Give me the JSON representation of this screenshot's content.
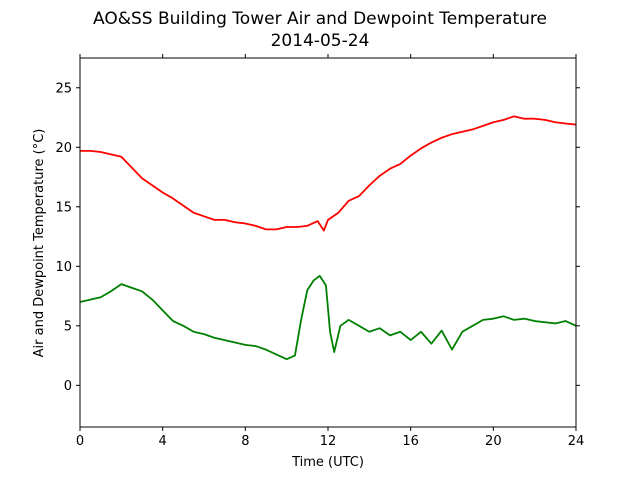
{
  "chart_data": {
    "type": "line",
    "title": "AO&SS Building Tower Air and Dewpoint Temperature",
    "subtitle": "2014-05-24",
    "xlabel": "Time (UTC)",
    "ylabel": "Air and Dewpoint Temperature (°C)",
    "xlim": [
      0,
      24
    ],
    "ylim": [
      -3.5,
      27.5
    ],
    "xticks": [
      0,
      4,
      8,
      12,
      16,
      20,
      24
    ],
    "yticks": [
      0,
      5,
      10,
      15,
      20,
      25
    ],
    "grid": false,
    "legend": "none",
    "series": [
      {
        "color": "#ff0000",
        "x": [
          0,
          0.5,
          1,
          1.5,
          2,
          2.5,
          3,
          3.5,
          4,
          4.5,
          5,
          5.5,
          6,
          6.5,
          7,
          7.5,
          8,
          8.5,
          9,
          9.5,
          10,
          10.5,
          11,
          11.5,
          11.8,
          12,
          12.5,
          13,
          13.5,
          14,
          14.5,
          15,
          15.5,
          16,
          16.5,
          17,
          17.5,
          18,
          18.5,
          19,
          19.5,
          20,
          20.5,
          21,
          21.5,
          22,
          22.5,
          23,
          23.5,
          24
        ],
        "y": [
          19.7,
          19.7,
          19.6,
          19.4,
          19.2,
          18.3,
          17.4,
          16.8,
          16.2,
          15.7,
          15.1,
          14.5,
          14.2,
          13.9,
          13.9,
          13.7,
          13.6,
          13.4,
          13.1,
          13.1,
          13.3,
          13.3,
          13.4,
          13.8,
          13.0,
          13.9,
          14.5,
          15.5,
          15.9,
          16.8,
          17.6,
          18.2,
          18.6,
          19.3,
          19.9,
          20.4,
          20.8,
          21.1,
          21.3,
          21.5,
          21.8,
          22.1,
          22.3,
          22.6,
          22.4,
          22.4,
          22.3,
          22.1,
          22.0,
          21.9
        ]
      },
      {
        "color": "#008000",
        "x": [
          0,
          0.5,
          1,
          1.5,
          2,
          2.5,
          3,
          3.5,
          4,
          4.5,
          5,
          5.5,
          6,
          6.5,
          7,
          7.5,
          8,
          8.5,
          9,
          9.5,
          10,
          10.4,
          10.7,
          11,
          11.3,
          11.6,
          11.9,
          12.1,
          12.3,
          12.6,
          13,
          13.5,
          14,
          14.5,
          15,
          15.5,
          16,
          16.5,
          17,
          17.5,
          18,
          18.5,
          19,
          19.5,
          20,
          20.5,
          21,
          21.5,
          22,
          22.5,
          23,
          23.5,
          24
        ],
        "y": [
          7.0,
          7.2,
          7.4,
          7.9,
          8.5,
          8.2,
          7.9,
          7.2,
          6.3,
          5.4,
          5.0,
          4.5,
          4.3,
          4.0,
          3.8,
          3.6,
          3.4,
          3.3,
          3.0,
          2.6,
          2.2,
          2.5,
          5.5,
          8.0,
          8.8,
          9.2,
          8.4,
          4.5,
          2.8,
          5.0,
          5.5,
          5.0,
          4.5,
          4.8,
          4.2,
          4.5,
          3.8,
          4.5,
          3.5,
          4.6,
          3.0,
          4.5,
          5.0,
          5.5,
          5.6,
          5.8,
          5.5,
          5.6,
          5.4,
          5.3,
          5.2,
          5.4,
          5.0
        ]
      }
    ]
  }
}
